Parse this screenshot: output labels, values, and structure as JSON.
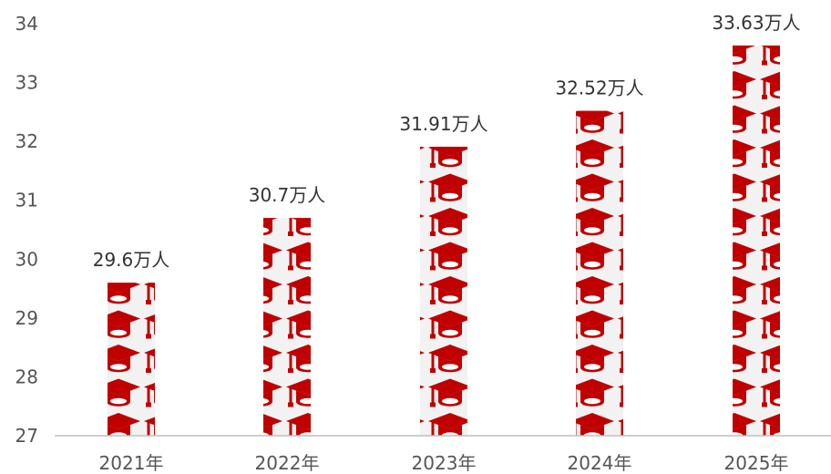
{
  "chart_data": {
    "type": "bar",
    "categories": [
      "2021年",
      "2022年",
      "2023年",
      "2024年",
      "2025年"
    ],
    "values": [
      29.6,
      30.7,
      31.91,
      32.52,
      33.63
    ],
    "data_labels": [
      "29.6万人",
      "30.7万人",
      "31.91万人",
      "32.52万人",
      "33.63万人"
    ],
    "ylim": [
      27,
      34
    ],
    "yticks": [
      27,
      28,
      29,
      30,
      31,
      32,
      33,
      34
    ],
    "grid": false,
    "legend": "none",
    "bar_icon": "graduation-cap-icon",
    "colors": {
      "icon": "#c00000",
      "bar_background": "#f2f2f2",
      "axis": "#bfbfbf",
      "text": "#555555"
    }
  }
}
